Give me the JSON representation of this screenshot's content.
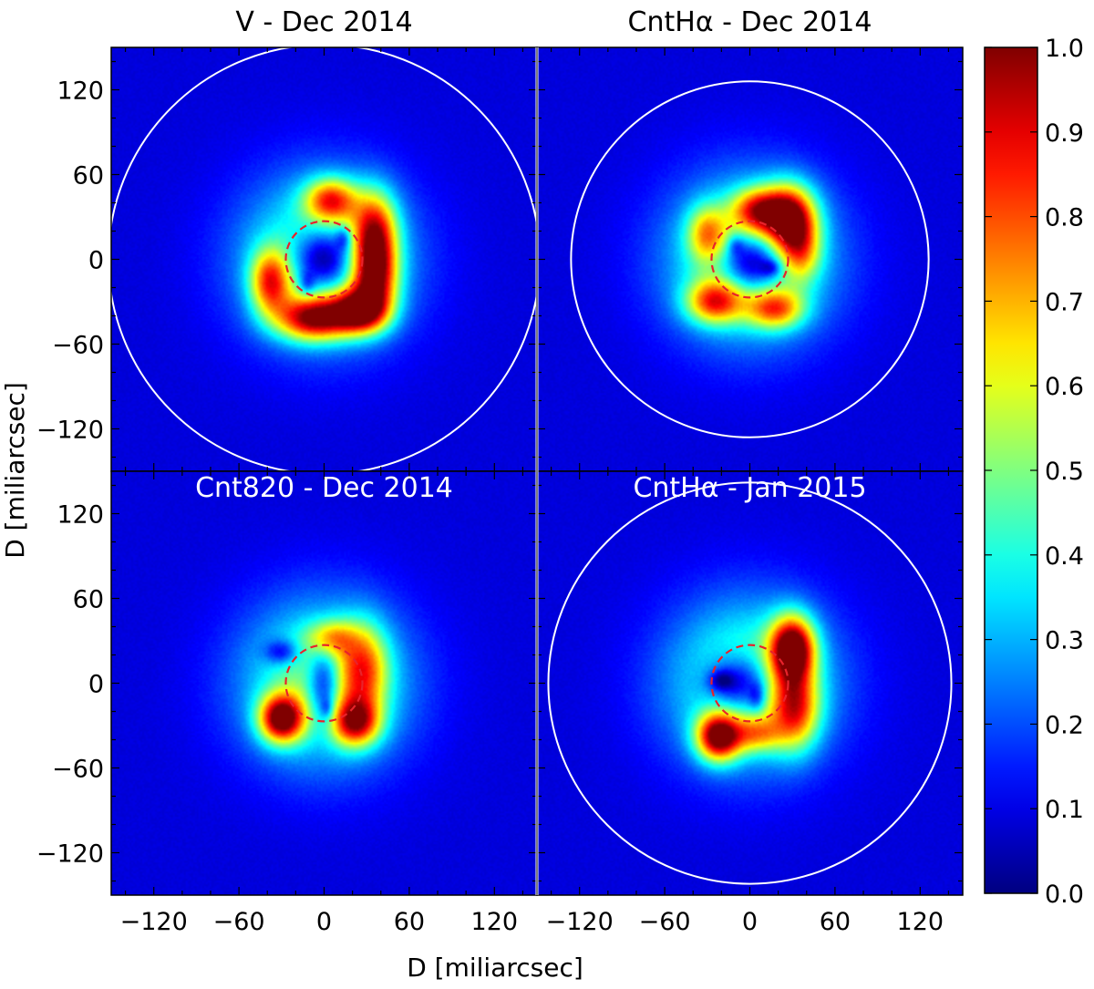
{
  "chart_data": {
    "type": "heatmap",
    "xlabel": "D [miliarcsec]",
    "ylabel": "D [miliarcsec]",
    "xlim": [
      -150,
      150
    ],
    "ylim": [
      -150,
      150
    ],
    "xticks": [
      -120,
      -60,
      0,
      60,
      120
    ],
    "yticks": [
      -120,
      -60,
      0,
      60,
      120
    ],
    "tick_labels": [
      "−120",
      "−60",
      "0",
      "60",
      "120"
    ],
    "colorbar": {
      "colormap": "jet",
      "range": [
        0.0,
        1.0
      ],
      "ticks": [
        0.0,
        0.1,
        0.2,
        0.3,
        0.4,
        0.5,
        0.6,
        0.7,
        0.8,
        0.9,
        1.0
      ],
      "tick_labels": [
        "0.0",
        "0.1",
        "0.2",
        "0.3",
        "0.4",
        "0.5",
        "0.6",
        "0.7",
        "0.8",
        "0.9",
        "1.0"
      ]
    },
    "panels": [
      {
        "title": "V - Dec 2014",
        "title_color": "#000000",
        "outer_circle_radius": 152,
        "inner_circle_radius": 27,
        "blobs": [
          {
            "x": 5,
            "y": 42,
            "sx": 13,
            "sy": 11,
            "a": 0.55
          },
          {
            "x": 36,
            "y": 20,
            "sx": 11,
            "sy": 20,
            "a": 0.6
          },
          {
            "x": 36,
            "y": -14,
            "sx": 11,
            "sy": 18,
            "a": 0.6
          },
          {
            "x": 25,
            "y": -37,
            "sx": 14,
            "sy": 11,
            "a": 0.72
          },
          {
            "x": -8,
            "y": -42,
            "sx": 18,
            "sy": 11,
            "a": 0.7
          },
          {
            "x": -38,
            "y": -16,
            "sx": 10,
            "sy": 16,
            "a": 0.55
          }
        ],
        "holes": [
          {
            "x": 0,
            "y": 0,
            "sx": 15,
            "sy": 15,
            "a": 0.48
          },
          {
            "x": 14,
            "y": 15,
            "sx": 4,
            "sy": 6,
            "a": 0.2
          },
          {
            "x": -12,
            "y": -18,
            "sx": 4,
            "sy": 6,
            "a": 0.18
          }
        ]
      },
      {
        "title": "CntHα - Dec 2014",
        "title_color": "#000000",
        "outer_circle_radius": 126,
        "inner_circle_radius": 27,
        "blobs": [
          {
            "x": 28,
            "y": 30,
            "sx": 13,
            "sy": 16,
            "a": 0.75
          },
          {
            "x": 36,
            "y": 5,
            "sx": 10,
            "sy": 15,
            "a": 0.35
          },
          {
            "x": 5,
            "y": 35,
            "sx": 13,
            "sy": 11,
            "a": 0.5
          },
          {
            "x": -30,
            "y": 18,
            "sx": 10,
            "sy": 14,
            "a": 0.4
          },
          {
            "x": -25,
            "y": -30,
            "sx": 14,
            "sy": 11,
            "a": 0.55
          },
          {
            "x": 18,
            "y": -35,
            "sx": 14,
            "sy": 10,
            "a": 0.5
          }
        ],
        "holes": [
          {
            "x": 2,
            "y": -2,
            "sx": 15,
            "sy": 14,
            "a": 0.45
          },
          {
            "x": 15,
            "y": -6,
            "sx": 5,
            "sy": 4,
            "a": 0.18
          },
          {
            "x": -10,
            "y": 10,
            "sx": 4,
            "sy": 5,
            "a": 0.15
          }
        ]
      },
      {
        "title": "Cnt820 - Dec 2014",
        "title_color": "#ffffff",
        "outer_circle_radius": null,
        "inner_circle_radius": 27,
        "blobs": [
          {
            "x": 28,
            "y": 10,
            "sx": 12,
            "sy": 22,
            "a": 0.45
          },
          {
            "x": 22,
            "y": -28,
            "sx": 12,
            "sy": 12,
            "a": 0.6
          },
          {
            "x": -30,
            "y": -25,
            "sx": 11,
            "sy": 12,
            "a": 0.8
          },
          {
            "x": 5,
            "y": 32,
            "sx": 12,
            "sy": 9,
            "a": 0.35
          }
        ],
        "holes": [
          {
            "x": 0,
            "y": -2,
            "sx": 8,
            "sy": 20,
            "a": 0.35
          },
          {
            "x": 2,
            "y": -18,
            "sx": 3,
            "sy": 5,
            "a": 0.15
          },
          {
            "x": -30,
            "y": 22,
            "sx": 8,
            "sy": 6,
            "a": 0.25
          }
        ]
      },
      {
        "title": "CntHα - Jan 2015",
        "title_color": "#ffffff",
        "outer_circle_radius": 142,
        "inner_circle_radius": 27,
        "blobs": [
          {
            "x": 30,
            "y": 25,
            "sx": 11,
            "sy": 16,
            "a": 0.85
          },
          {
            "x": 32,
            "y": -18,
            "sx": 12,
            "sy": 20,
            "a": 0.55
          },
          {
            "x": -22,
            "y": -38,
            "sx": 11,
            "sy": 12,
            "a": 0.8
          },
          {
            "x": 5,
            "y": -36,
            "sx": 12,
            "sy": 9,
            "a": 0.35
          }
        ],
        "holes": [
          {
            "x": -8,
            "y": 0,
            "sx": 16,
            "sy": 14,
            "a": 0.4
          },
          {
            "x": -20,
            "y": 2,
            "sx": 6,
            "sy": 5,
            "a": 0.2
          },
          {
            "x": 5,
            "y": -10,
            "sx": 4,
            "sy": 7,
            "a": 0.18
          }
        ]
      }
    ]
  }
}
